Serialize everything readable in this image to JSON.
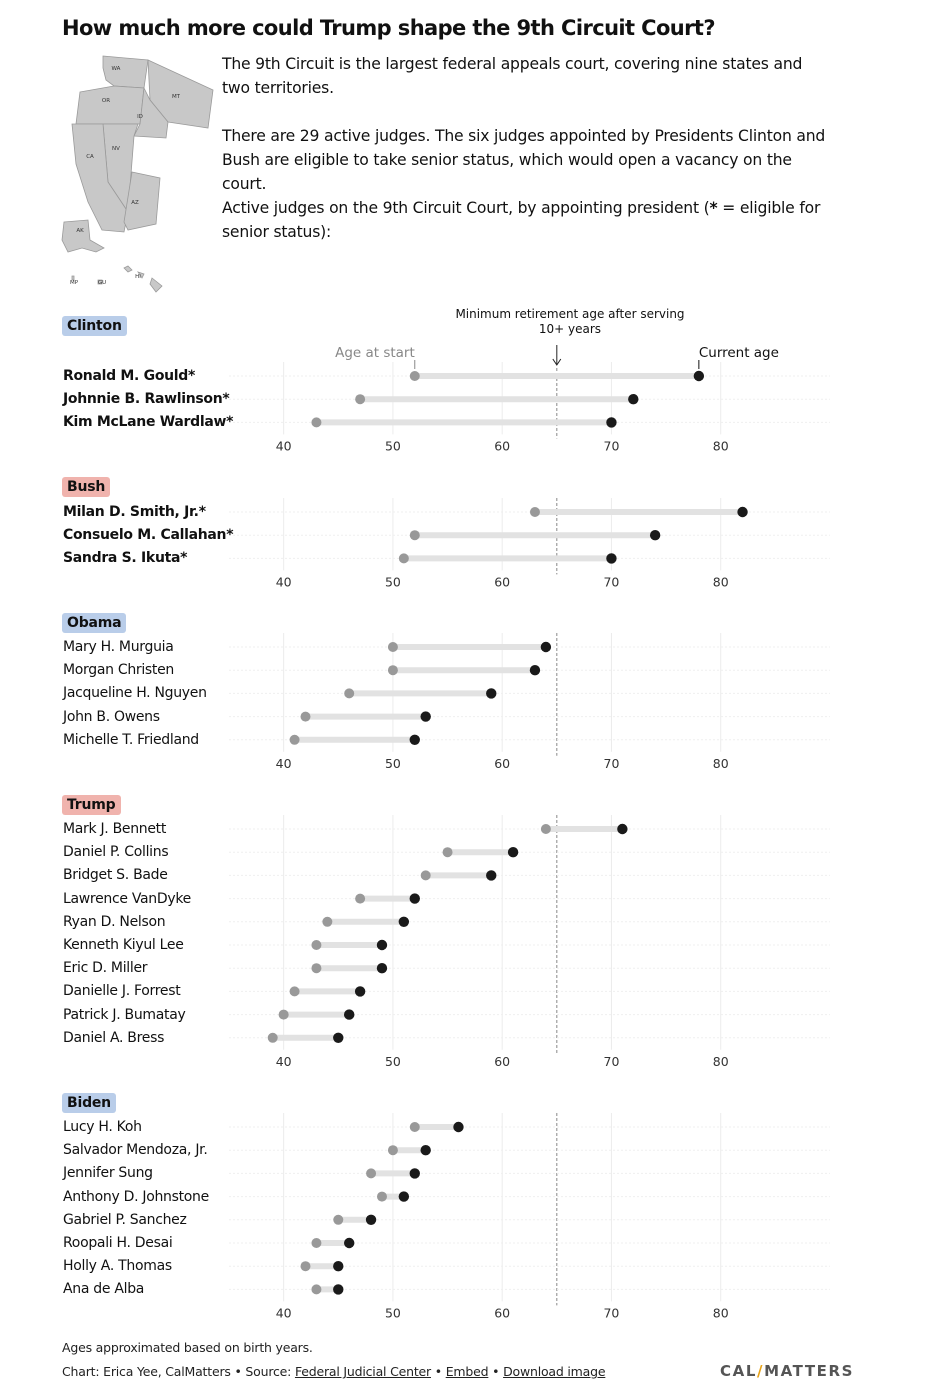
{
  "title": "How much more could Trump shape the 9th Circuit Court?",
  "intro": {
    "p1": "The 9th Circuit is the largest federal appeals court, covering nine states and two territories.",
    "p2": "There are 29 active judges. The six judges appointed by Presidents Clinton and Bush are eligible to take senior status, which would open a vacancy on the court.",
    "p3_before": "Active judges on the 9th Circuit Court, by appointing president (",
    "p3_bold": "*",
    "p3_after": " = eligible for senior status):"
  },
  "map": {
    "labels": [
      "WA",
      "OR",
      "MT",
      "ID",
      "NV",
      "CA",
      "AZ",
      "AK",
      "HI",
      "MP",
      "GU"
    ],
    "fill_color": "#c8c8c8",
    "stroke_color": "#999999"
  },
  "annotations": {
    "min_retirement_line1": "Minimum retirement age after serving",
    "min_retirement_line2": "10+ years",
    "age_at_start": "Age at start",
    "current_age": "Current age"
  },
  "colors": {
    "start_dot": "#999999",
    "current_dot": "#1a1a1a",
    "bar": "#e2e2e2",
    "democrat_tag": "#b9cde9",
    "republican_tag": "#f0b3ad"
  },
  "chart_data": {
    "type": "dumbbell",
    "x_axis": {
      "min": 35,
      "max": 90,
      "ticks": [
        40,
        50,
        60,
        70,
        80
      ]
    },
    "reference_line": 65,
    "groups": [
      {
        "president": "Clinton",
        "party": "dem",
        "judges": [
          {
            "name": "Ronald M. Gould*",
            "start": 52,
            "current": 78,
            "eligible": true
          },
          {
            "name": "Johnnie B. Rawlinson*",
            "start": 47,
            "current": 72,
            "eligible": true
          },
          {
            "name": "Kim McLane Wardlaw*",
            "start": 43,
            "current": 70,
            "eligible": true
          }
        ]
      },
      {
        "president": "Bush",
        "party": "rep",
        "judges": [
          {
            "name": "Milan D. Smith, Jr.*",
            "start": 63,
            "current": 82,
            "eligible": true
          },
          {
            "name": "Consuelo M. Callahan*",
            "start": 52,
            "current": 74,
            "eligible": true
          },
          {
            "name": "Sandra S. Ikuta*",
            "start": 51,
            "current": 70,
            "eligible": true
          }
        ]
      },
      {
        "president": "Obama",
        "party": "dem",
        "judges": [
          {
            "name": "Mary H. Murguia",
            "start": 50,
            "current": 64,
            "eligible": false
          },
          {
            "name": "Morgan Christen",
            "start": 50,
            "current": 63,
            "eligible": false
          },
          {
            "name": "Jacqueline H. Nguyen",
            "start": 46,
            "current": 59,
            "eligible": false
          },
          {
            "name": "John B. Owens",
            "start": 42,
            "current": 53,
            "eligible": false
          },
          {
            "name": "Michelle T. Friedland",
            "start": 41,
            "current": 52,
            "eligible": false
          }
        ]
      },
      {
        "president": "Trump",
        "party": "rep",
        "judges": [
          {
            "name": "Mark J. Bennett",
            "start": 64,
            "current": 71,
            "eligible": false
          },
          {
            "name": "Daniel P. Collins",
            "start": 55,
            "current": 61,
            "eligible": false
          },
          {
            "name": "Bridget S. Bade",
            "start": 53,
            "current": 59,
            "eligible": false
          },
          {
            "name": "Lawrence VanDyke",
            "start": 47,
            "current": 52,
            "eligible": false
          },
          {
            "name": "Ryan D. Nelson",
            "start": 44,
            "current": 51,
            "eligible": false
          },
          {
            "name": "Kenneth Kiyul Lee",
            "start": 43,
            "current": 49,
            "eligible": false
          },
          {
            "name": "Eric D. Miller",
            "start": 43,
            "current": 49,
            "eligible": false
          },
          {
            "name": "Danielle J. Forrest",
            "start": 41,
            "current": 47,
            "eligible": false
          },
          {
            "name": "Patrick J. Bumatay",
            "start": 40,
            "current": 46,
            "eligible": false
          },
          {
            "name": "Daniel A. Bress",
            "start": 39,
            "current": 45,
            "eligible": false
          }
        ]
      },
      {
        "president": "Biden",
        "party": "dem",
        "judges": [
          {
            "name": "Lucy H. Koh",
            "start": 52,
            "current": 56,
            "eligible": false
          },
          {
            "name": "Salvador Mendoza, Jr.",
            "start": 50,
            "current": 53,
            "eligible": false
          },
          {
            "name": "Jennifer Sung",
            "start": 48,
            "current": 52,
            "eligible": false
          },
          {
            "name": "Anthony D. Johnstone",
            "start": 49,
            "current": 51,
            "eligible": false
          },
          {
            "name": "Gabriel P. Sanchez",
            "start": 45,
            "current": 48,
            "eligible": false
          },
          {
            "name": "Roopali H. Desai",
            "start": 43,
            "current": 46,
            "eligible": false
          },
          {
            "name": "Holly A. Thomas",
            "start": 42,
            "current": 45,
            "eligible": false
          },
          {
            "name": "Ana de Alba",
            "start": 43,
            "current": 45,
            "eligible": false
          }
        ]
      }
    ]
  },
  "footer": {
    "note": "Ages approximated based on birth years.",
    "credit_prefix": "Chart: Erica Yee, CalMatters • Source: ",
    "source_link": "Federal Judicial Center",
    "sep1": " • ",
    "embed_link": "Embed",
    "sep2": "  • ",
    "download_link": "Download image",
    "logo_part1": "CAL",
    "logo_part2": "MATTERS"
  }
}
